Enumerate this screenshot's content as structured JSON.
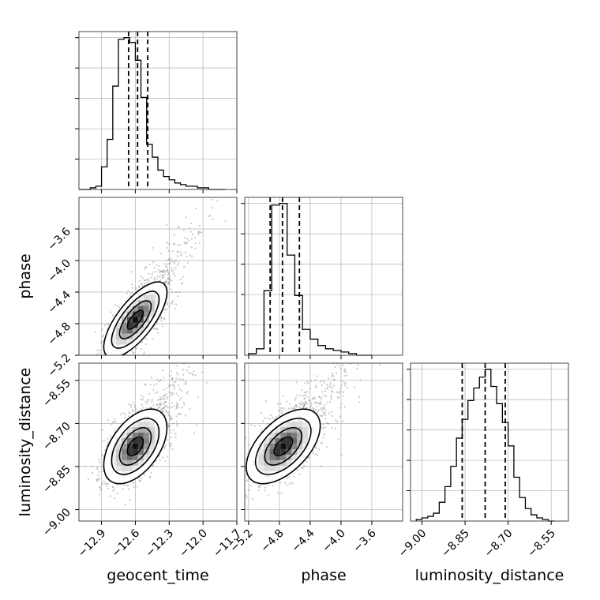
{
  "figure": {
    "background": "#ffffff",
    "grid": true,
    "grid_color": "#b0b0b0"
  },
  "chart_data": [
    {
      "type": "histogram",
      "panel": "geocent_time-marginal",
      "parameter": "geocent_time",
      "xlim": [
        -13.1,
        -11.7
      ],
      "xticks": [
        "-12.9",
        "-12.6",
        "-12.3",
        "-12.0",
        "-11.7"
      ],
      "quantiles": [
        -12.66,
        -12.58,
        -12.49
      ],
      "bin_edges": [
        -13.1,
        -13.05,
        -13.0,
        -12.95,
        -12.9,
        -12.85,
        -12.8,
        -12.75,
        -12.7,
        -12.65,
        -12.6,
        -12.55,
        -12.5,
        -12.45,
        -12.4,
        -12.35,
        -12.3,
        -12.25,
        -12.2,
        -12.15,
        -12.1,
        -12.05,
        -12.0,
        -11.95,
        -11.9,
        -11.85,
        -11.8
      ],
      "counts": [
        0,
        0,
        1,
        2,
        14,
        31,
        64,
        93,
        94,
        91,
        80,
        57,
        28,
        20,
        12,
        8,
        6,
        4,
        3,
        2,
        2,
        1,
        1,
        0,
        0,
        0
      ]
    },
    {
      "type": "scatter-density",
      "panel": "phase-vs-geocent_time",
      "x_parameter": "geocent_time",
      "y_parameter": "phase",
      "xlim": [
        -13.1,
        -11.7
      ],
      "ylim": [
        -5.2,
        -3.2
      ],
      "ylabel": "phase",
      "yticks": [
        "-5.2",
        "-4.8",
        "-4.4",
        "-4.0",
        "-3.6"
      ],
      "mean": [
        -12.6,
        -4.75
      ],
      "std": [
        0.14,
        0.24
      ],
      "correlation": 0.72,
      "contour_levels_sigma": [
        0.5,
        1.0,
        1.5,
        2.0
      ]
    },
    {
      "type": "histogram",
      "panel": "phase-marginal",
      "parameter": "phase",
      "xlim": [
        -5.25,
        -3.2
      ],
      "quantiles": [
        -4.92,
        -4.76,
        -4.54
      ],
      "bin_edges": [
        -5.2,
        -5.1,
        -5.0,
        -4.9,
        -4.8,
        -4.7,
        -4.6,
        -4.5,
        -4.4,
        -4.3,
        -4.2,
        -4.1,
        -4.0,
        -3.9,
        -3.8,
        -3.7,
        -3.6
      ],
      "counts": [
        1,
        4,
        40,
        93,
        94,
        62,
        37,
        16,
        10,
        6,
        4,
        3,
        2,
        1,
        0,
        0
      ]
    },
    {
      "type": "scatter-density",
      "panel": "luminosity_distance-vs-geocent_time",
      "x_parameter": "geocent_time",
      "y_parameter": "luminosity_distance",
      "xlim": [
        -13.1,
        -11.7
      ],
      "ylim": [
        -9.04,
        -8.49
      ],
      "xlabel": "geocent_time",
      "ylabel": "luminosity_distance",
      "xticks": [
        "-12.9",
        "-12.6",
        "-12.3",
        "-12.0",
        "-11.7"
      ],
      "yticks": [
        "-9.00",
        "-8.85",
        "-8.70",
        "-8.55"
      ],
      "mean": [
        -12.6,
        -8.78
      ],
      "std": [
        0.14,
        0.065
      ],
      "correlation": 0.5,
      "contour_levels_sigma": [
        0.5,
        1.0,
        1.5,
        2.0
      ]
    },
    {
      "type": "scatter-density",
      "panel": "luminosity_distance-vs-phase",
      "x_parameter": "phase",
      "y_parameter": "luminosity_distance",
      "xlim": [
        -5.25,
        -3.2
      ],
      "ylim": [
        -9.04,
        -8.49
      ],
      "xlabel": "phase",
      "xticks": [
        "-5.2",
        "-4.8",
        "-4.4",
        "-4.0",
        "-3.6"
      ],
      "mean": [
        -4.75,
        -8.78
      ],
      "std": [
        0.24,
        0.065
      ],
      "correlation": 0.55,
      "contour_levels_sigma": [
        0.5,
        1.0,
        1.5,
        2.0
      ]
    },
    {
      "type": "histogram",
      "panel": "luminosity_distance-marginal",
      "parameter": "luminosity_distance",
      "xlim": [
        -9.04,
        -8.49
      ],
      "xlabel": "luminosity_distance",
      "xticks": [
        "-9.00",
        "-8.85",
        "-8.70",
        "-8.55"
      ],
      "quantiles": [
        -8.86,
        -8.78,
        -8.71
      ],
      "bin_edges": [
        -9.02,
        -9.0,
        -8.98,
        -8.96,
        -8.94,
        -8.92,
        -8.9,
        -8.88,
        -8.86,
        -8.84,
        -8.82,
        -8.8,
        -8.78,
        -8.76,
        -8.74,
        -8.72,
        -8.7,
        -8.68,
        -8.66,
        -8.64,
        -8.62,
        -8.6,
        -8.58,
        -8.56,
        -8.54
      ],
      "counts": [
        1,
        2,
        3,
        5,
        12,
        22,
        35,
        53,
        65,
        77,
        85,
        92,
        97,
        86,
        75,
        63,
        48,
        28,
        15,
        8,
        4,
        2,
        1,
        0
      ]
    }
  ]
}
